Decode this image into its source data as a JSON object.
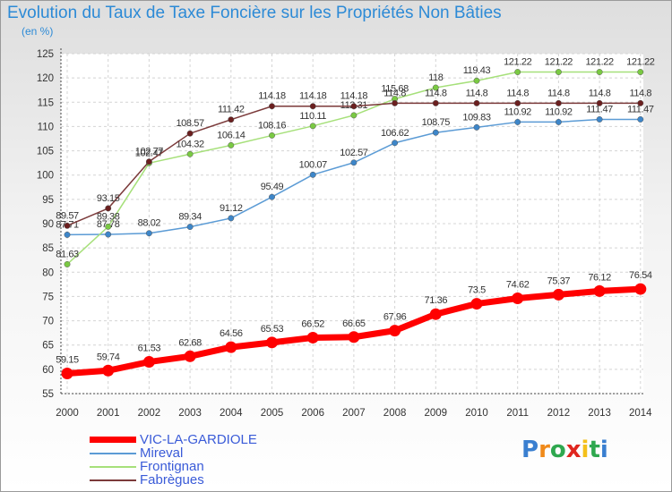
{
  "title": "Evolution du Taux de Taxe Foncière sur les Propriétés Non Bâties",
  "subtitle": "(en %)",
  "logo": "Prox iti",
  "chart_data": {
    "type": "line",
    "title": "Evolution du Taux de Taxe Foncière sur les Propriétés Non Bâties",
    "ylabel": "(en %)",
    "xlabel": "",
    "ylim": [
      55,
      125
    ],
    "yticks": [
      55,
      60,
      65,
      70,
      75,
      80,
      85,
      90,
      95,
      100,
      105,
      110,
      115,
      120,
      125
    ],
    "grid": true,
    "legend_position": "bottom-left",
    "categories": [
      "2000",
      "2001",
      "2002",
      "2003",
      "2004",
      "2005",
      "2006",
      "2007",
      "2008",
      "2009",
      "2010",
      "2011",
      "2012",
      "2013",
      "2014"
    ],
    "series": [
      {
        "name": "Mireval",
        "color": "#5b9bd5",
        "marker": "#3d86c9",
        "width": 1.5,
        "values": [
          87.71,
          87.78,
          88.02,
          89.34,
          91.12,
          95.49,
          100.07,
          102.57,
          106.62,
          108.75,
          109.83,
          110.92,
          110.92,
          111.47,
          111.47
        ],
        "labels": [
          "87.71",
          "87.78",
          "88.02",
          "89.34",
          "91.12",
          "95.49",
          "100.07",
          "102.57",
          "106.62",
          "108.75",
          "109.83",
          "110.92",
          "110.92",
          "111.47",
          "111.47"
        ]
      },
      {
        "name": "Frontignan",
        "color": "#a6e07a",
        "marker": "#7ac943",
        "width": 1.5,
        "values": [
          81.63,
          89.38,
          102.47,
          104.32,
          106.14,
          108.16,
          110.11,
          112.31,
          115.68,
          118,
          119.43,
          121.22,
          121.22,
          121.22,
          121.22
        ],
        "labels": [
          "81.63",
          "89.38",
          "102.47",
          "104.32",
          "106.14",
          "108.16",
          "110.11",
          "112.31",
          "115.68",
          "118",
          "119.43",
          "121.22",
          "121.22",
          "121.22",
          "121.22"
        ]
      },
      {
        "name": "Fabrègues",
        "color": "#7b3a3a",
        "marker": "#6b1f1f",
        "width": 1.5,
        "values": [
          89.57,
          93.15,
          102.77,
          108.57,
          111.42,
          114.18,
          114.18,
          114.18,
          114.8,
          114.8,
          114.8,
          114.8,
          114.8,
          114.8,
          114.8
        ],
        "labels": [
          "89.57",
          "93.15",
          "102.77",
          "108.57",
          "111.42",
          "114.18",
          "114.18",
          "114.18",
          "114.8",
          "114.8",
          "114.8",
          "114.8",
          "114.8",
          "114.8",
          "114.8"
        ]
      },
      {
        "name": "VIC-LA-GARDIOLE",
        "color": "#ff0000",
        "marker": "#ff0000",
        "width": 7,
        "values": [
          59.15,
          59.74,
          61.53,
          62.68,
          64.56,
          65.53,
          66.52,
          66.65,
          67.96,
          71.36,
          73.5,
          74.62,
          75.37,
          76.12,
          76.54
        ],
        "labels": [
          "59.15",
          "59.74",
          "61.53",
          "62.68",
          "64.56",
          "65.53",
          "66.52",
          "66.65",
          "67.96",
          "71.36",
          "73.5",
          "74.62",
          "75.37",
          "76.12",
          "76.54"
        ]
      }
    ],
    "legend": [
      {
        "name": "VIC-LA-GARDIOLE",
        "color": "#ff0000",
        "thick": true
      },
      {
        "name": "Mireval",
        "color": "#5b9bd5",
        "thick": false
      },
      {
        "name": "Frontignan",
        "color": "#a6e07a",
        "thick": false
      },
      {
        "name": "Fabrègues",
        "color": "#7b3a3a",
        "thick": false
      }
    ]
  }
}
